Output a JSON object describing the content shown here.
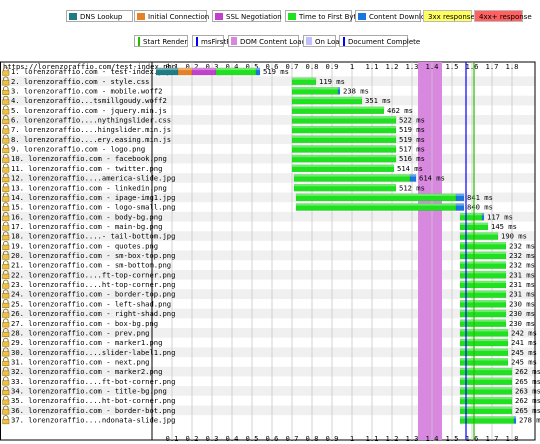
{
  "legend": {
    "row1": [
      {
        "label": "DNS Lookup",
        "color": "#1f7c83"
      },
      {
        "label": "Initial Connection",
        "color": "#e58226"
      },
      {
        "label": "SSL Negotiation",
        "color": "#c141cd"
      },
      {
        "label": "Time to First Byte",
        "color": "#1fe11f"
      },
      {
        "label": "Content Download",
        "color": "#1977dd"
      },
      {
        "label": "3xx response",
        "color": "#ffff60"
      },
      {
        "label": "4xx+ response",
        "color": "#ff6060"
      }
    ],
    "row2": [
      {
        "label": "Start Render",
        "color": "#28bc00"
      },
      {
        "label": "msFirstPaint",
        "color": "#0000ff"
      },
      {
        "label": "DOM Content Loaded",
        "color": "#d888df"
      },
      {
        "label": "On Load",
        "color": "#c0c0ff"
      },
      {
        "label": "Document Complete",
        "color": "#0000ff"
      }
    ]
  },
  "colors": {
    "dns": "#1f7c83",
    "connect": "#e58226",
    "ssl": "#c141cd",
    "ttfb": "#1fe11f",
    "download": "#1977dd",
    "dom_content_loaded": "#d888df",
    "on_load": "#c0c0ff",
    "start_render": "#28bc00",
    "doc_complete": "#0000ff",
    "alt_row": "#f0f0f0"
  },
  "chart_data": {
    "type": "waterfall",
    "page_url": "https://lorenzoraffio.com/test-index.php",
    "x_unit": "s",
    "xlim": [
      0,
      1.88
    ],
    "x_ticks": [
      0.1,
      0.2,
      0.3,
      0.4,
      0.5,
      0.6,
      0.7,
      0.8,
      0.9,
      1,
      1.1,
      1.2,
      1.3,
      1.4,
      1.5,
      1.6,
      1.7,
      1.8
    ],
    "x_tick_labels": [
      "0.1",
      "0.2",
      "0.3",
      "0.4",
      "0.5",
      "0.6",
      "0.7",
      "0.8",
      "0.9",
      "1",
      "1.1",
      "1.2",
      "1.3",
      "1.4",
      "1.5",
      "1.6",
      "1.7",
      "1.8"
    ],
    "dom_content_loaded": [
      1.33,
      1.45
    ],
    "start_render": 1.61,
    "doc_complete": 1.57,
    "requests": [
      {
        "label": "1. lorenzoraffio.com - test-index.php",
        "start": 0.02,
        "dns": 0.11,
        "connect": 0.07,
        "ssl": 0.12,
        "ttfb": 0.2,
        "download": 0.02,
        "duration": "519 ms"
      },
      {
        "label": "2. lorenzoraffio.com - style.css",
        "start": 0.7,
        "ttfb": 0.12,
        "download": 0.0,
        "duration": "119 ms"
      },
      {
        "label": "3. lorenzoraffio.com - mobile.woff2",
        "start": 0.7,
        "ttfb": 0.23,
        "download": 0.01,
        "duration": "238 ms"
      },
      {
        "label": "4. lorenzoraffio...tsmillgoudy.woff2",
        "start": 0.7,
        "ttfb": 0.35,
        "download": 0.0,
        "duration": "351 ms"
      },
      {
        "label": "5. lorenzoraffio.com - jquery.min.js",
        "start": 0.7,
        "ttfb": 0.46,
        "download": 0.0,
        "duration": "462 ms"
      },
      {
        "label": "6. lorenzoraffio....nythingslider.css",
        "start": 0.7,
        "ttfb": 0.52,
        "download": 0.0,
        "duration": "522 ms"
      },
      {
        "label": "7. lorenzoraffio....hingslider.min.js",
        "start": 0.7,
        "ttfb": 0.52,
        "download": 0.0,
        "duration": "519 ms"
      },
      {
        "label": "8. lorenzoraffio....ery.easing.min.js",
        "start": 0.7,
        "ttfb": 0.52,
        "download": 0.0,
        "duration": "519 ms"
      },
      {
        "label": "9. lorenzoraffio.com - logo.png",
        "start": 0.7,
        "ttfb": 0.52,
        "download": 0.0,
        "duration": "517 ms"
      },
      {
        "label": "10. lorenzoraffio.com - facebook.png",
        "start": 0.7,
        "ttfb": 0.52,
        "download": 0.0,
        "duration": "516 ms"
      },
      {
        "label": "11. lorenzoraffio.com - twitter.png",
        "start": 0.7,
        "ttfb": 0.51,
        "download": 0.0,
        "duration": "514 ms"
      },
      {
        "label": "12. lorenzoraffio....america-slide.jpg",
        "start": 0.71,
        "ttfb": 0.58,
        "download": 0.03,
        "duration": "614 ms"
      },
      {
        "label": "13. lorenzoraffio.com - linkedin.png",
        "start": 0.71,
        "ttfb": 0.51,
        "download": 0.0,
        "duration": "512 ms"
      },
      {
        "label": "14. lorenzoraffio.com - ipage-img1.jpg",
        "start": 0.72,
        "ttfb": 0.8,
        "download": 0.04,
        "duration": "841 ms"
      },
      {
        "label": "15. lorenzoraffio.com - logo-small.png",
        "start": 0.72,
        "ttfb": 0.8,
        "download": 0.04,
        "duration": "840 ms"
      },
      {
        "label": "16. lorenzoraffio.com - body-bg.png",
        "start": 1.54,
        "ttfb": 0.11,
        "download": 0.01,
        "duration": "117 ms"
      },
      {
        "label": "17. lorenzoraffio.com - main-bg.png",
        "start": 1.54,
        "ttfb": 0.14,
        "download": 0.0,
        "duration": "145 ms"
      },
      {
        "label": "18. lorenzoraffio....- tail-bottom.jpg",
        "start": 1.54,
        "ttfb": 0.19,
        "download": 0.0,
        "duration": "190 ms"
      },
      {
        "label": "19. lorenzoraffio.com - quotes.png",
        "start": 1.54,
        "ttfb": 0.23,
        "download": 0.0,
        "duration": "232 ms"
      },
      {
        "label": "20. lorenzoraffio.com - sm-box-top.png",
        "start": 1.54,
        "ttfb": 0.23,
        "download": 0.0,
        "duration": "232 ms"
      },
      {
        "label": "21. lorenzoraffio.com - sm-bottom.png",
        "start": 1.54,
        "ttfb": 0.23,
        "download": 0.0,
        "duration": "232 ms"
      },
      {
        "label": "22. lorenzoraffio....ft-top-corner.png",
        "start": 1.54,
        "ttfb": 0.23,
        "download": 0.0,
        "duration": "231 ms"
      },
      {
        "label": "23. lorenzoraffio....ht-top-corner.png",
        "start": 1.54,
        "ttfb": 0.23,
        "download": 0.0,
        "duration": "231 ms"
      },
      {
        "label": "24. lorenzoraffio.com - border-top.png",
        "start": 1.54,
        "ttfb": 0.23,
        "download": 0.0,
        "duration": "231 ms"
      },
      {
        "label": "25. lorenzoraffio.com - left-shad.png",
        "start": 1.54,
        "ttfb": 0.23,
        "download": 0.0,
        "duration": "230 ms"
      },
      {
        "label": "26. lorenzoraffio.com - right-shad.png",
        "start": 1.54,
        "ttfb": 0.23,
        "download": 0.0,
        "duration": "230 ms"
      },
      {
        "label": "27. lorenzoraffio.com - box-bg.png",
        "start": 1.54,
        "ttfb": 0.23,
        "download": 0.0,
        "duration": "230 ms"
      },
      {
        "label": "28. lorenzoraffio.com - prev.png",
        "start": 1.54,
        "ttfb": 0.24,
        "download": 0.0,
        "duration": "242 ms"
      },
      {
        "label": "29. lorenzoraffio.com - marker1.png",
        "start": 1.54,
        "ttfb": 0.24,
        "download": 0.0,
        "duration": "241 ms"
      },
      {
        "label": "30. lorenzoraffio....slider-label1.png",
        "start": 1.54,
        "ttfb": 0.24,
        "download": 0.0,
        "duration": "245 ms"
      },
      {
        "label": "31. lorenzoraffio.com - next.png",
        "start": 1.54,
        "ttfb": 0.24,
        "download": 0.0,
        "duration": "245 ms"
      },
      {
        "label": "32. lorenzoraffio.com - marker2.png",
        "start": 1.54,
        "ttfb": 0.26,
        "download": 0.0,
        "duration": "262 ms"
      },
      {
        "label": "33. lorenzoraffio....ft-bot-corner.png",
        "start": 1.54,
        "ttfb": 0.26,
        "download": 0.0,
        "duration": "265 ms"
      },
      {
        "label": "34. lorenzoraffio.com - title-bg.png",
        "start": 1.54,
        "ttfb": 0.26,
        "download": 0.0,
        "duration": "263 ms"
      },
      {
        "label": "35. lorenzoraffio....ht-bot-corner.png",
        "start": 1.54,
        "ttfb": 0.26,
        "download": 0.0,
        "duration": "262 ms"
      },
      {
        "label": "36. lorenzoraffio.com - border-bot.png",
        "start": 1.54,
        "ttfb": 0.26,
        "download": 0.0,
        "duration": "265 ms"
      },
      {
        "label": "37. lorenzoraffio....ndonata-slide.jpg",
        "start": 1.54,
        "ttfb": 0.27,
        "download": 0.01,
        "duration": "278 ms"
      }
    ]
  }
}
